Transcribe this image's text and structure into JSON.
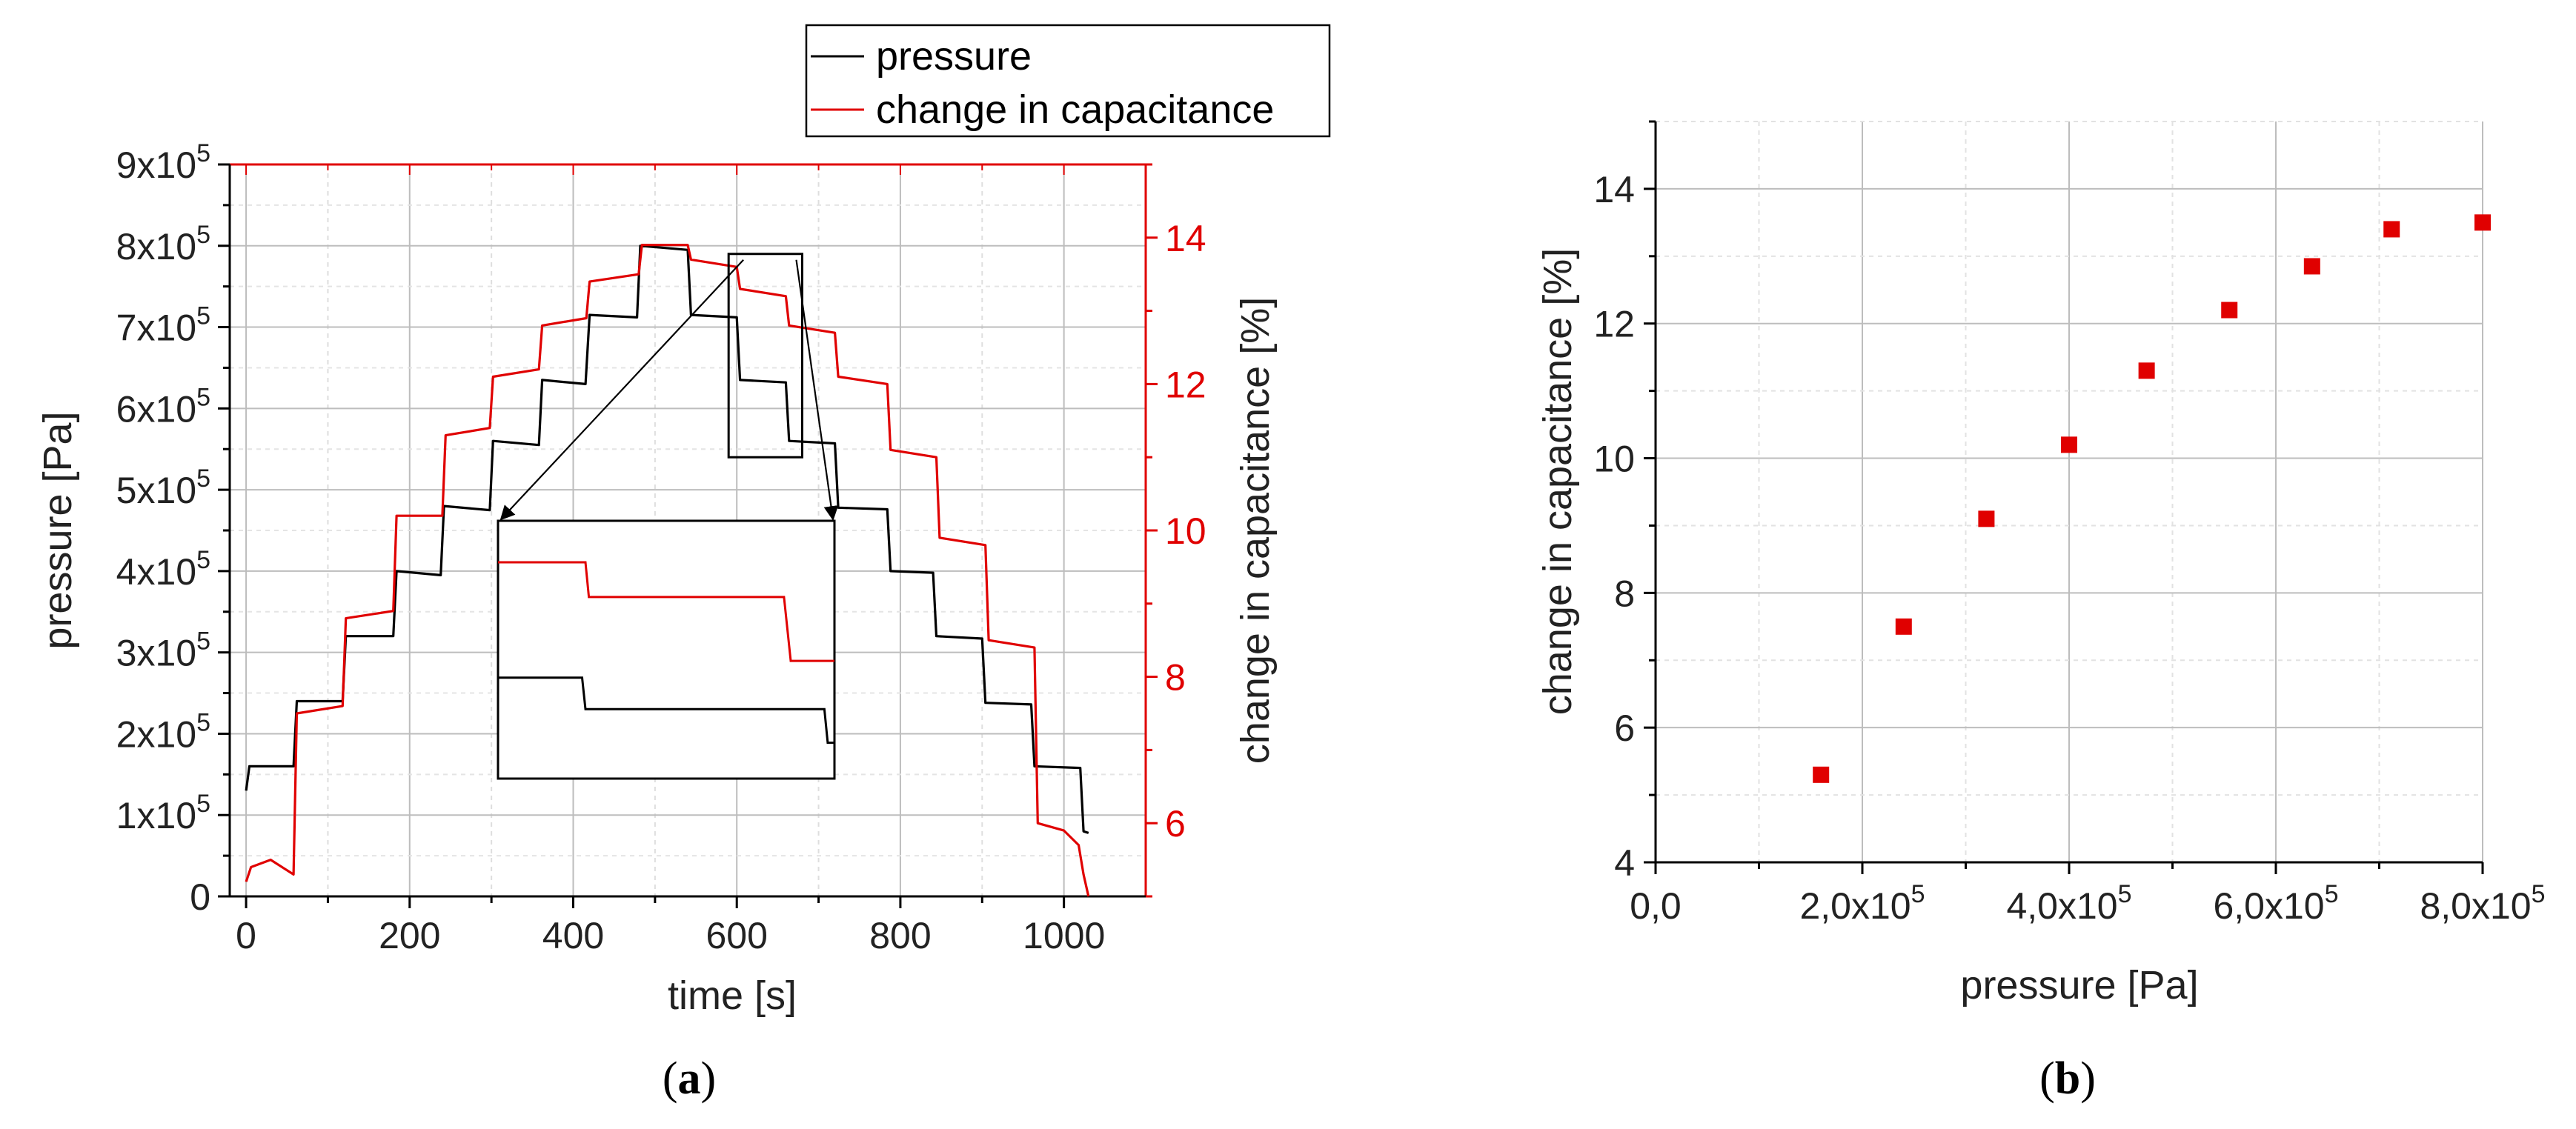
{
  "panels": {
    "a": {
      "caption_letter": "a",
      "chart_data": {
        "type": "line",
        "x_label": "time [s]",
        "y_label_left": "pressure [Pa]",
        "y_label_right": "change in capacitance [%]",
        "x_ticks": [
          "0",
          "200",
          "400",
          "600",
          "800",
          "1000"
        ],
        "y_left_ticks": [
          {
            "mant": "0",
            "exp": ""
          },
          {
            "mant": "1x10",
            "exp": "5"
          },
          {
            "mant": "2x10",
            "exp": "5"
          },
          {
            "mant": "3x10",
            "exp": "5"
          },
          {
            "mant": "4x10",
            "exp": "5"
          },
          {
            "mant": "5x10",
            "exp": "5"
          },
          {
            "mant": "6x10",
            "exp": "5"
          },
          {
            "mant": "7x10",
            "exp": "5"
          },
          {
            "mant": "8x10",
            "exp": "5"
          },
          {
            "mant": "9x10",
            "exp": "5"
          }
        ],
        "y_right_ticks": [
          "6",
          "8",
          "10",
          "12",
          "14"
        ],
        "xlim": [
          -20,
          1100
        ],
        "ylim_left": [
          0,
          900000
        ],
        "ylim_right": [
          5,
          15
        ],
        "legend": [
          "pressure",
          "change in capacitance"
        ],
        "series": [
          {
            "name": "pressure",
            "color": "#000000",
            "points": [
              [
                0,
                130000
              ],
              [
                4,
                160000
              ],
              [
                58,
                160000
              ],
              [
                62,
                240000
              ],
              [
                118,
                240000
              ],
              [
                122,
                320000
              ],
              [
                180,
                320000
              ],
              [
                184,
                400000
              ],
              [
                238,
                395000
              ],
              [
                242,
                480000
              ],
              [
                298,
                475000
              ],
              [
                302,
                560000
              ],
              [
                358,
                555000
              ],
              [
                362,
                635000
              ],
              [
                415,
                630000
              ],
              [
                420,
                715000
              ],
              [
                478,
                712000
              ],
              [
                482,
                800000
              ],
              [
                540,
                795000
              ],
              [
                544,
                715000
              ],
              [
                600,
                712000
              ],
              [
                604,
                635000
              ],
              [
                660,
                632000
              ],
              [
                664,
                560000
              ],
              [
                720,
                557000
              ],
              [
                724,
                478000
              ],
              [
                784,
                476000
              ],
              [
                788,
                400000
              ],
              [
                840,
                398000
              ],
              [
                844,
                320000
              ],
              [
                900,
                317000
              ],
              [
                904,
                238000
              ],
              [
                960,
                236000
              ],
              [
                964,
                160000
              ],
              [
                1020,
                158000
              ],
              [
                1024,
                80000
              ],
              [
                1030,
                78000
              ]
            ]
          },
          {
            "name": "change in capacitance",
            "color": "#e00000",
            "points": [
              [
                0,
                5.2
              ],
              [
                6,
                5.4
              ],
              [
                30,
                5.5
              ],
              [
                58,
                5.3
              ],
              [
                62,
                7.5
              ],
              [
                118,
                7.6
              ],
              [
                122,
                8.8
              ],
              [
                180,
                8.9
              ],
              [
                184,
                10.2
              ],
              [
                240,
                10.2
              ],
              [
                244,
                11.3
              ],
              [
                298,
                11.4
              ],
              [
                302,
                12.1
              ],
              [
                358,
                12.2
              ],
              [
                362,
                12.8
              ],
              [
                416,
                12.9
              ],
              [
                420,
                13.4
              ],
              [
                480,
                13.5
              ],
              [
                484,
                13.9
              ],
              [
                540,
                13.9
              ],
              [
                544,
                13.7
              ],
              [
                600,
                13.6
              ],
              [
                604,
                13.3
              ],
              [
                660,
                13.2
              ],
              [
                664,
                12.8
              ],
              [
                720,
                12.7
              ],
              [
                724,
                12.1
              ],
              [
                784,
                12.0
              ],
              [
                788,
                11.1
              ],
              [
                844,
                11.0
              ],
              [
                848,
                9.9
              ],
              [
                904,
                9.8
              ],
              [
                908,
                8.5
              ],
              [
                964,
                8.4
              ],
              [
                968,
                6.0
              ],
              [
                1000,
                5.9
              ],
              [
                1018,
                5.7
              ],
              [
                1024,
                5.3
              ],
              [
                1030,
                5.0
              ]
            ]
          }
        ],
        "zoom_window_data": {
          "x": [
            590,
            680
          ],
          "y": [
            540000,
            790000
          ]
        },
        "zoom_inset_traces": {
          "pressure": [
            [
              0,
              290000
            ],
            [
              0.25,
              290000
            ],
            [
              0.26,
              262000
            ],
            [
              0.97,
              262000
            ],
            [
              0.98,
              232000
            ],
            [
              1.0,
              232000
            ]
          ],
          "capacitance": [
            [
              0,
              393000
            ],
            [
              0.26,
              393000
            ],
            [
              0.27,
              362000
            ],
            [
              0.85,
              362000
            ],
            [
              0.87,
              305000
            ],
            [
              1.0,
              305000
            ]
          ]
        }
      }
    },
    "b": {
      "caption_letter": "b",
      "chart_data": {
        "type": "scatter",
        "x_label": "pressure [Pa]",
        "y_label": "change in capacitance [%]",
        "x_ticks": [
          {
            "mant": "0,0",
            "exp": ""
          },
          {
            "mant": "2,0x10",
            "exp": "5"
          },
          {
            "mant": "4,0x10",
            "exp": "5"
          },
          {
            "mant": "6,0x10",
            "exp": "5"
          },
          {
            "mant": "8,0x10",
            "exp": "5"
          }
        ],
        "y_ticks": [
          "4",
          "6",
          "8",
          "10",
          "12",
          "14"
        ],
        "xlim": [
          0,
          800000
        ],
        "ylim": [
          4,
          15
        ],
        "marker_color": "#e00000",
        "x": [
          160000,
          240000,
          320000,
          400000,
          475000,
          555000,
          635000,
          712000,
          800000
        ],
        "y": [
          5.3,
          7.5,
          9.1,
          10.2,
          11.3,
          12.2,
          12.85,
          13.4,
          13.5
        ]
      }
    }
  }
}
